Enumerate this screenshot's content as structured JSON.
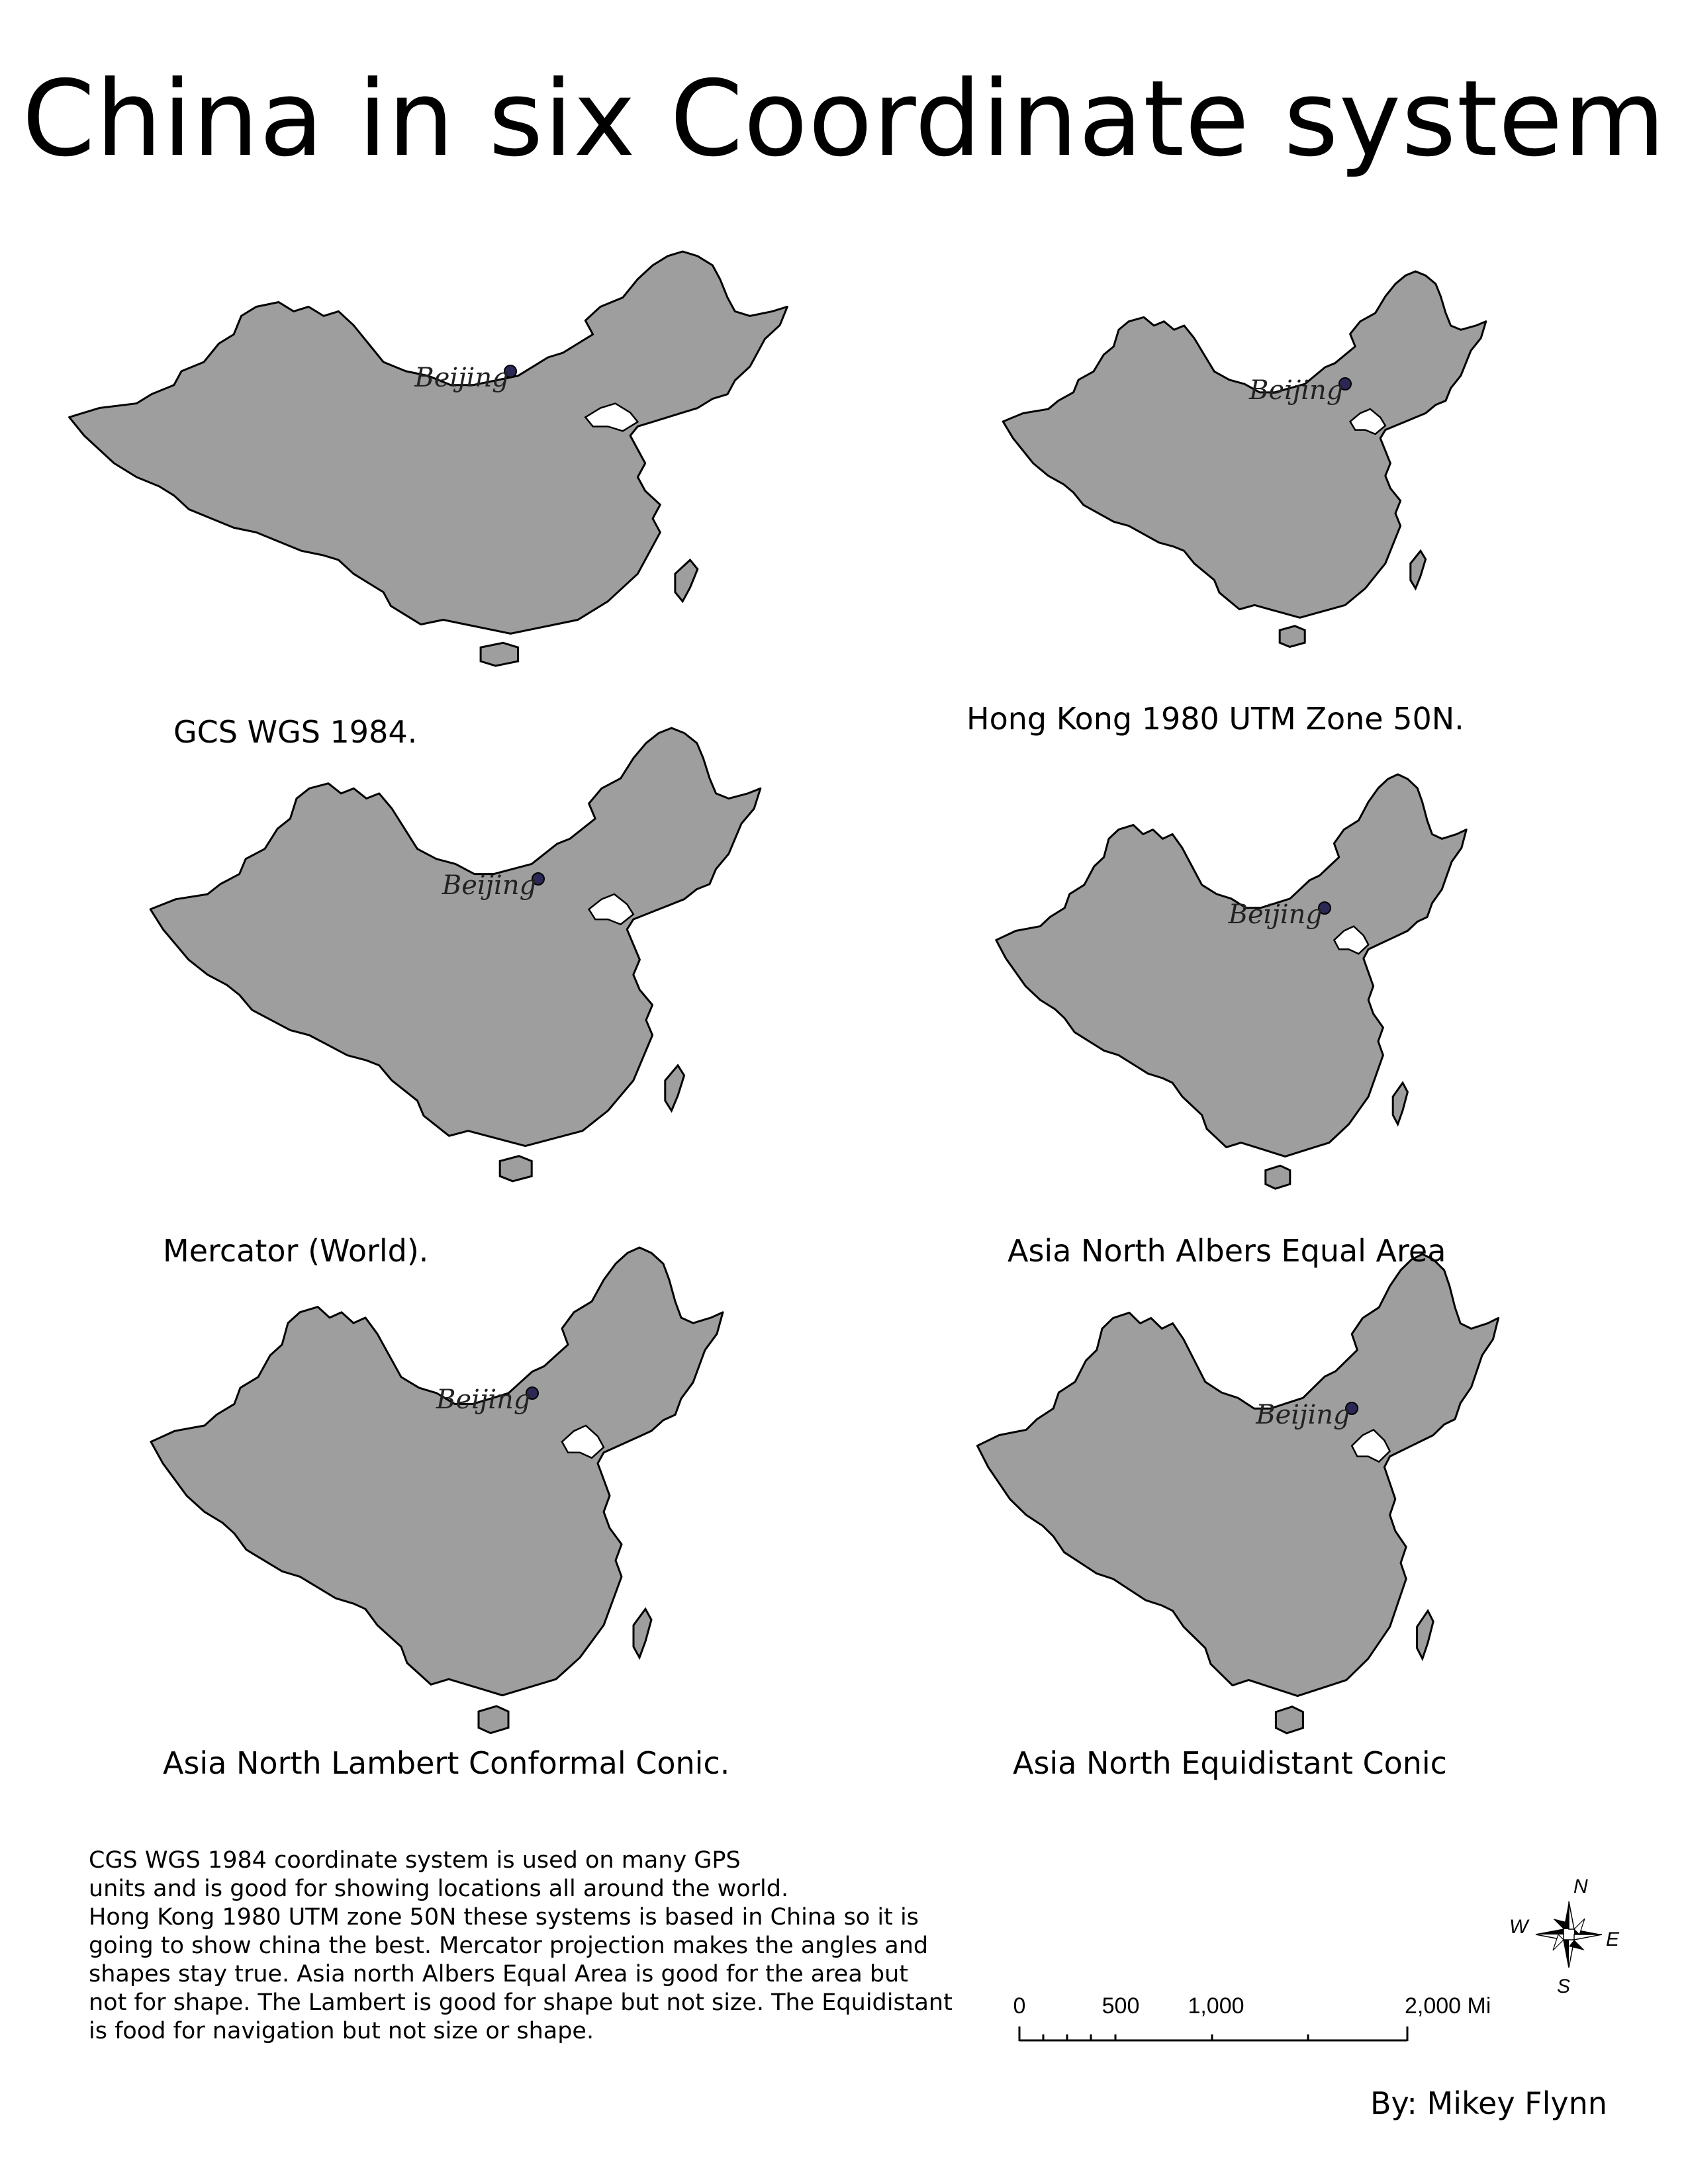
{
  "title": "China in six Coordinate system",
  "city_label": "Beijing",
  "maps": [
    {
      "id": "gcs",
      "caption": "GCS WGS 1984."
    },
    {
      "id": "hk",
      "caption": "Hong Kong 1980 UTM Zone 50N."
    },
    {
      "id": "mercator",
      "caption": "Mercator (World)."
    },
    {
      "id": "albers",
      "caption": "Asia North Albers Equal Area"
    },
    {
      "id": "lambert",
      "caption": "Asia North Lambert Conformal Conic."
    },
    {
      "id": "equidistant",
      "caption": "Asia North Equidistant Conic"
    }
  ],
  "description": [
    "CGS WGS 1984 coordinate system is used on many GPS",
    "units and is good for showing locations all around the world.",
    "Hong Kong 1980 UTM zone 50N these systems is based in China so it is",
    "going to show china the best. Mercator projection makes the angles and",
    "shapes stay true. Asia north Albers Equal Area is good for the area but",
    "not for shape. The Lambert is good for shape but not size. The Equidistant",
    " is food for navigation but not size or shape."
  ],
  "scale_bar": {
    "labels": [
      "0",
      "500",
      "1,000",
      "2,000 Miles"
    ]
  },
  "compass": {
    "n": "N",
    "s": "S",
    "e": "E",
    "w": "W"
  },
  "author": "By: Mikey Flynn",
  "colors": {
    "land": "#9e9e9e",
    "city_marker": "#2b2855",
    "background": "#ffffff"
  }
}
